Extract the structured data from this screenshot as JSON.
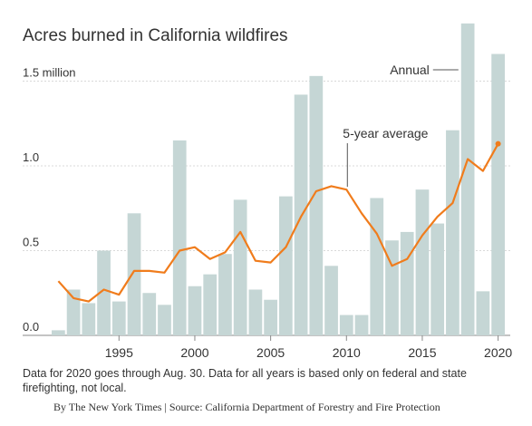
{
  "chart_data": {
    "type": "bar",
    "title": "Acres burned in California wildfires",
    "y_tick_labels": [
      "0.0",
      "0.5",
      "1.0",
      "1.5 million"
    ],
    "y_ticks": [
      0,
      0.5,
      1.0,
      1.5
    ],
    "ylim": [
      0,
      1.85
    ],
    "x_tick_labels": [
      "1995",
      "2000",
      "2005",
      "2010",
      "2015",
      "2020"
    ],
    "x_ticks": [
      1995,
      2000,
      2005,
      2010,
      2015,
      2020
    ],
    "xlim": [
      1990.5,
      2020.8
    ],
    "grid": true,
    "series": [
      {
        "name": "Annual",
        "kind": "bar",
        "color": "#c5d6d5",
        "x": [
          1991,
          1992,
          1993,
          1994,
          1995,
          1996,
          1997,
          1998,
          1999,
          2000,
          2001,
          2002,
          2003,
          2004,
          2005,
          2006,
          2007,
          2008,
          2009,
          2010,
          2011,
          2012,
          2013,
          2014,
          2015,
          2016,
          2017,
          2018,
          2019,
          2020
        ],
        "values": [
          0.03,
          0.27,
          0.19,
          0.5,
          0.2,
          0.72,
          0.25,
          0.18,
          1.15,
          0.29,
          0.36,
          0.48,
          0.8,
          0.27,
          0.21,
          0.82,
          1.42,
          1.53,
          0.41,
          0.12,
          0.12,
          0.81,
          0.56,
          0.61,
          0.86,
          0.66,
          1.21,
          1.84,
          0.26,
          1.66
        ]
      },
      {
        "name": "5-year average",
        "kind": "line",
        "color": "#f07c1c",
        "x": [
          1991,
          1992,
          1993,
          1994,
          1995,
          1996,
          1997,
          1998,
          1999,
          2000,
          2001,
          2002,
          2003,
          2004,
          2005,
          2006,
          2007,
          2008,
          2009,
          2010,
          2011,
          2012,
          2013,
          2014,
          2015,
          2016,
          2017,
          2018,
          2019,
          2020
        ],
        "values": [
          0.32,
          0.22,
          0.2,
          0.27,
          0.24,
          0.38,
          0.38,
          0.37,
          0.5,
          0.52,
          0.45,
          0.49,
          0.61,
          0.44,
          0.43,
          0.52,
          0.7,
          0.85,
          0.88,
          0.86,
          0.72,
          0.6,
          0.41,
          0.45,
          0.59,
          0.7,
          0.78,
          1.04,
          0.97,
          1.13
        ]
      }
    ],
    "annotations": [
      "Annual",
      "5-year average"
    ]
  },
  "notes": {
    "text": "Data for 2020 goes through Aug. 30. Data for all years is based only on federal and state firefighting, not local.",
    "credit": "By The New York Times | Source: California Department of Forestry and Fire Protection"
  }
}
